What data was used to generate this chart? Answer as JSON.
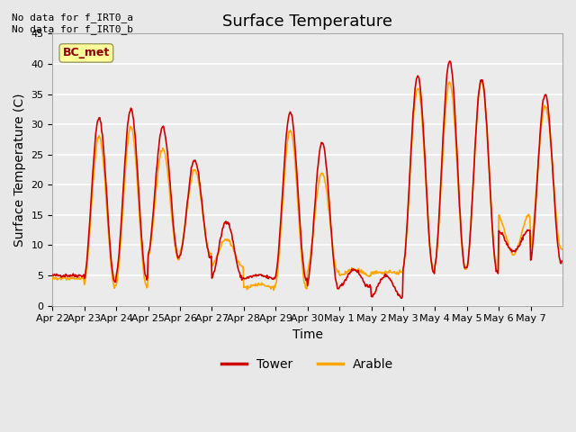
{
  "title": "Surface Temperature",
  "xlabel": "Time",
  "ylabel": "Surface Temperature (C)",
  "ylim": [
    0,
    45
  ],
  "yticks": [
    0,
    5,
    10,
    15,
    20,
    25,
    30,
    35,
    40,
    45
  ],
  "xtick_labels": [
    "Apr 22",
    "Apr 23",
    "Apr 24",
    "Apr 25",
    "Apr 26",
    "Apr 27",
    "Apr 28",
    "Apr 29",
    "Apr 30",
    "May 1",
    "May 2",
    "May 3",
    "May 4",
    "May 5",
    "May 6",
    "May 7"
  ],
  "tower_color": "#CC0000",
  "arable_color": "#FFA500",
  "annotation_text": "No data for f_IRT0_a\nNo data for f_IRT0_b",
  "annotation_color": "#000000",
  "bc_met_box_color": "#FFFF99",
  "bc_met_text_color": "#8B0000",
  "bc_met_border_color": "#999966",
  "title_fontsize": 13,
  "label_fontsize": 10,
  "tick_fontsize": 8,
  "legend_fontsize": 10,
  "background_color": "#E8E8E8",
  "plot_bg_color": "#EBEBEB",
  "grid_color": "#FFFFFF",
  "line_width": 1.2,
  "n_days": 16,
  "pts_per_day": 48,
  "daily_peaks_tower": [
    5.0,
    31.0,
    32.5,
    29.5,
    24.0,
    14.0,
    5.0,
    32.0,
    27.0,
    6.0,
    5.0,
    38.0,
    40.5,
    37.5,
    9.0,
    35.0
  ],
  "daily_troughs_tower": [
    5.0,
    4.0,
    4.5,
    8.0,
    8.0,
    4.5,
    4.5,
    4.5,
    3.0,
    3.0,
    1.5,
    5.5,
    6.0,
    5.5,
    12.5,
    7.0
  ],
  "daily_peaks_arable": [
    4.5,
    28.0,
    29.5,
    26.0,
    22.5,
    11.0,
    3.5,
    29.0,
    22.0,
    6.0,
    5.5,
    36.0,
    37.0,
    37.0,
    8.5,
    33.0
  ],
  "daily_troughs_arable": [
    4.5,
    3.0,
    3.0,
    7.5,
    8.5,
    6.5,
    3.0,
    3.0,
    5.5,
    5.0,
    5.5,
    5.5,
    6.0,
    5.5,
    15.0,
    9.5
  ]
}
